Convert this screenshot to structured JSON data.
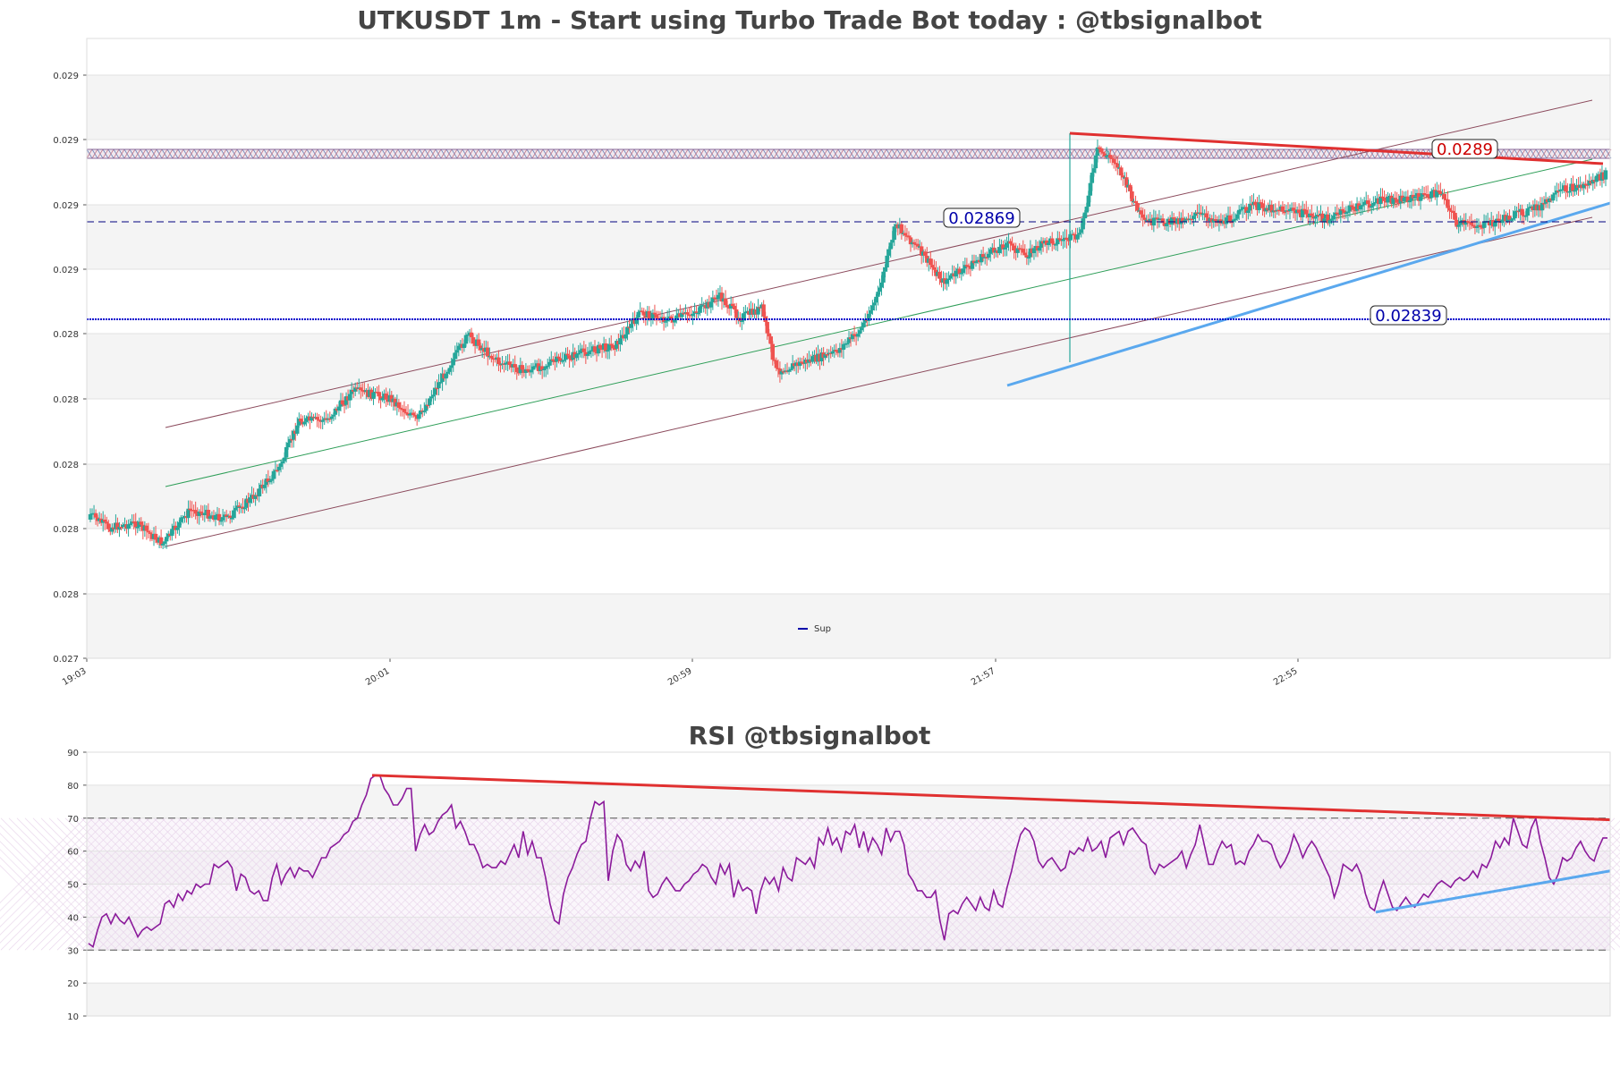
{
  "chart_data": [
    {
      "type": "candlestick",
      "title": "UTKUSDT 1m - Start using Turbo Trade Bot today : @tbsignalbot",
      "x_tick_labels": [
        "19:03",
        "20:01",
        "20:59",
        "21:57",
        "22:55"
      ],
      "y_tick_labels": [
        "0.027",
        "0.028",
        "0.028",
        "0.028",
        "0.028",
        "0.028",
        "0.029",
        "0.029",
        "0.029",
        "0.029"
      ],
      "legend": {
        "entries": [
          "Sup"
        ],
        "placement": "lower-center"
      },
      "levels": [
        {
          "value": 0.02869,
          "label": "0.02869",
          "style": "dashed",
          "color": "#000080"
        },
        {
          "value": 0.02839,
          "label": "0.02839",
          "style": "dotted",
          "color": "#0000cc"
        },
        {
          "value": 0.0289,
          "label": "0.0289",
          "style": "trendline",
          "color": "#cc0000"
        }
      ],
      "up_color": "#26a69a",
      "down_color": "#ef5350"
    },
    {
      "type": "line",
      "title": "RSI @tbsignalbot",
      "ylim": [
        10,
        90
      ],
      "y_tick_labels": [
        "10",
        "20",
        "30",
        "40",
        "50",
        "60",
        "70",
        "80",
        "90"
      ],
      "overbought": 70,
      "oversold": 30,
      "line_color": "#8b1a9b",
      "values": [
        32,
        31,
        36,
        40,
        41,
        38,
        41,
        39,
        38,
        40,
        37,
        34,
        36,
        37,
        36,
        37,
        38,
        44,
        45,
        43,
        47,
        45,
        48,
        47,
        50,
        49,
        50,
        50,
        56,
        55,
        56,
        57,
        55,
        48,
        53,
        52,
        48,
        47,
        48,
        45,
        45,
        52,
        56,
        50,
        53,
        55,
        52,
        55,
        54,
        54,
        52,
        55,
        58,
        58,
        61,
        62,
        63,
        65,
        66,
        69,
        70,
        74,
        77,
        82,
        83,
        83,
        79,
        77,
        74,
        74,
        76,
        79,
        79,
        60,
        65,
        68,
        65,
        66,
        69,
        71,
        72,
        74,
        67,
        69,
        66,
        62,
        62,
        59,
        55,
        56,
        55,
        55,
        57,
        56,
        59,
        62,
        58,
        66,
        59,
        63,
        58,
        58,
        52,
        44,
        39,
        38,
        47,
        52,
        55,
        59,
        62,
        63,
        70,
        75,
        74,
        75,
        51,
        60,
        65,
        63,
        56,
        54,
        57,
        55,
        60,
        48,
        46,
        47,
        50,
        52,
        50,
        48,
        48,
        50,
        51,
        53,
        54,
        56,
        55,
        52,
        50,
        56,
        53,
        56,
        46,
        51,
        48,
        49,
        48,
        41,
        48,
        52,
        50,
        52,
        48,
        55,
        52,
        51,
        58,
        57,
        56,
        58,
        55,
        64,
        62,
        67,
        62,
        64,
        60,
        66,
        65,
        68,
        61,
        66,
        60,
        64,
        62,
        59,
        67,
        63,
        66,
        66,
        62,
        53,
        51,
        48,
        48,
        46,
        46,
        48,
        39,
        33,
        41,
        42,
        41,
        44,
        46,
        44,
        42,
        46,
        43,
        42,
        48,
        44,
        43,
        49,
        54,
        60,
        65,
        67,
        66,
        63,
        57,
        55,
        57,
        58,
        56,
        54,
        55,
        60,
        59,
        61,
        60,
        64,
        60,
        61,
        63,
        58,
        64,
        65,
        66,
        62,
        66,
        67,
        65,
        63,
        62,
        55,
        53,
        56,
        55,
        56,
        57,
        58,
        60,
        55,
        59,
        62,
        68,
        62,
        56,
        56,
        60,
        63,
        61,
        62,
        56,
        57,
        56,
        60,
        62,
        65,
        63,
        63,
        62,
        58,
        55,
        57,
        60,
        65,
        62,
        58,
        61,
        63,
        61,
        58,
        55,
        52,
        46,
        50,
        56,
        55,
        54,
        56,
        53,
        47,
        43,
        42,
        47,
        51,
        47,
        43,
        42,
        44,
        46,
        44,
        43,
        45,
        47,
        46,
        48,
        50,
        51,
        50,
        49,
        51,
        52,
        51,
        52,
        54,
        52,
        56,
        55,
        58,
        63,
        61,
        64,
        62,
        70,
        66,
        62,
        61,
        67,
        70,
        63,
        58,
        52,
        50,
        53,
        58,
        57,
        58,
        61,
        63,
        60,
        58,
        57,
        61,
        64,
        64
      ]
    }
  ]
}
